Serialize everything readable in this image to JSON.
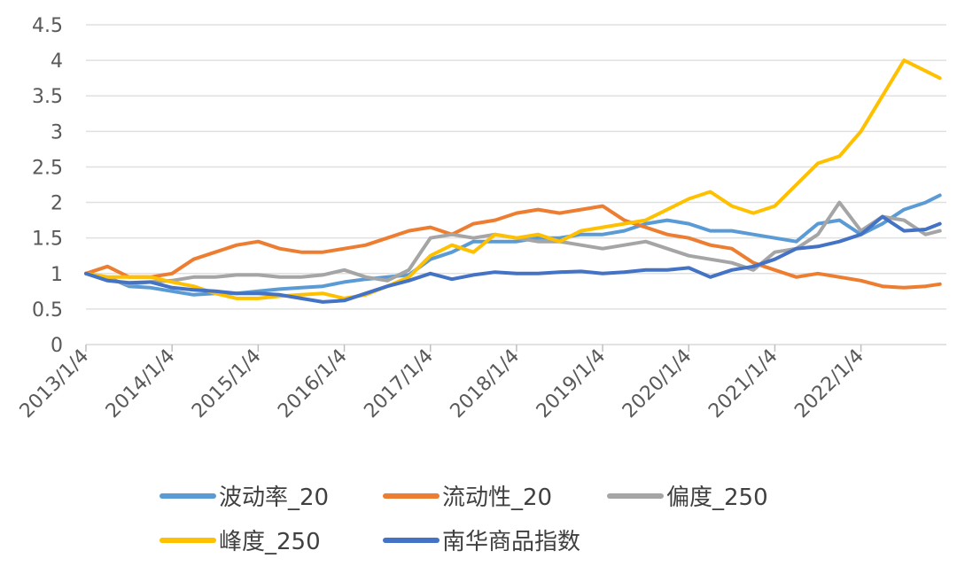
{
  "chart_data": {
    "type": "line",
    "title": "",
    "xlabel": "",
    "ylabel": "",
    "ylim": [
      0,
      4.5
    ],
    "yticks": [
      "0",
      "0.5",
      "1",
      "1.5",
      "2",
      "2.5",
      "3",
      "3.5",
      "4",
      "4.5"
    ],
    "xticks": [
      "2013/1/4",
      "2014/1/4",
      "2015/1/4",
      "2016/1/4",
      "2017/1/4",
      "2018/1/4",
      "2019/1/4",
      "2020/1/4",
      "2021/1/4",
      "2022/1/4"
    ],
    "grid": "horizontal",
    "legend_position": "bottom",
    "x": [
      "2013-01",
      "2013-04",
      "2013-07",
      "2013-10",
      "2014-01",
      "2014-04",
      "2014-07",
      "2014-10",
      "2015-01",
      "2015-04",
      "2015-07",
      "2015-10",
      "2016-01",
      "2016-04",
      "2016-07",
      "2016-10",
      "2017-01",
      "2017-04",
      "2017-07",
      "2017-10",
      "2018-01",
      "2018-04",
      "2018-07",
      "2018-10",
      "2019-01",
      "2019-04",
      "2019-07",
      "2019-10",
      "2020-01",
      "2020-04",
      "2020-07",
      "2020-10",
      "2021-01",
      "2021-04",
      "2021-07",
      "2021-10",
      "2022-01",
      "2022-04",
      "2022-07",
      "2022-10",
      "2022-12"
    ],
    "series": [
      {
        "name": "波动率_20",
        "color": "#5B9BD5",
        "values": [
          1.0,
          0.95,
          0.82,
          0.8,
          0.75,
          0.7,
          0.72,
          0.72,
          0.75,
          0.78,
          0.8,
          0.82,
          0.88,
          0.92,
          0.95,
          0.98,
          1.2,
          1.3,
          1.45,
          1.45,
          1.45,
          1.5,
          1.5,
          1.55,
          1.55,
          1.6,
          1.7,
          1.75,
          1.7,
          1.6,
          1.6,
          1.55,
          1.5,
          1.45,
          1.7,
          1.75,
          1.55,
          1.7,
          1.9,
          2.0,
          2.1
        ]
      },
      {
        "name": "流动性_20",
        "color": "#ED7D31",
        "values": [
          1.0,
          1.1,
          0.95,
          0.95,
          1.0,
          1.2,
          1.3,
          1.4,
          1.45,
          1.35,
          1.3,
          1.3,
          1.35,
          1.4,
          1.5,
          1.6,
          1.65,
          1.55,
          1.7,
          1.75,
          1.85,
          1.9,
          1.85,
          1.9,
          1.95,
          1.75,
          1.65,
          1.55,
          1.5,
          1.4,
          1.35,
          1.15,
          1.05,
          0.95,
          1.0,
          0.95,
          0.9,
          0.82,
          0.8,
          0.82,
          0.85
        ]
      },
      {
        "name": "偏度_250",
        "color": "#A5A5A5",
        "values": [
          1.0,
          0.92,
          0.85,
          0.88,
          0.9,
          0.95,
          0.95,
          0.98,
          0.98,
          0.95,
          0.95,
          0.98,
          1.05,
          0.95,
          0.9,
          1.05,
          1.5,
          1.55,
          1.5,
          1.55,
          1.5,
          1.45,
          1.45,
          1.4,
          1.35,
          1.4,
          1.45,
          1.35,
          1.25,
          1.2,
          1.15,
          1.05,
          1.3,
          1.35,
          1.55,
          2.0,
          1.6,
          1.8,
          1.75,
          1.55,
          1.6
        ]
      },
      {
        "name": "峰度_250",
        "color": "#FFC000",
        "values": [
          1.0,
          0.95,
          0.95,
          0.95,
          0.88,
          0.82,
          0.72,
          0.65,
          0.65,
          0.68,
          0.7,
          0.72,
          0.65,
          0.7,
          0.82,
          0.95,
          1.25,
          1.4,
          1.3,
          1.55,
          1.5,
          1.55,
          1.45,
          1.6,
          1.65,
          1.7,
          1.75,
          1.9,
          2.05,
          2.15,
          1.95,
          1.85,
          1.95,
          2.25,
          2.55,
          2.65,
          3.0,
          3.5,
          4.0,
          3.85,
          3.75
        ]
      },
      {
        "name": "南华商品指数",
        "color": "#4472C4",
        "values": [
          1.0,
          0.9,
          0.87,
          0.88,
          0.8,
          0.77,
          0.75,
          0.72,
          0.72,
          0.7,
          0.65,
          0.6,
          0.62,
          0.72,
          0.82,
          0.9,
          1.0,
          0.92,
          0.98,
          1.02,
          1.0,
          1.0,
          1.02,
          1.03,
          1.0,
          1.02,
          1.05,
          1.05,
          1.08,
          0.95,
          1.05,
          1.1,
          1.2,
          1.35,
          1.38,
          1.45,
          1.55,
          1.8,
          1.6,
          1.62,
          1.7
        ]
      }
    ]
  }
}
